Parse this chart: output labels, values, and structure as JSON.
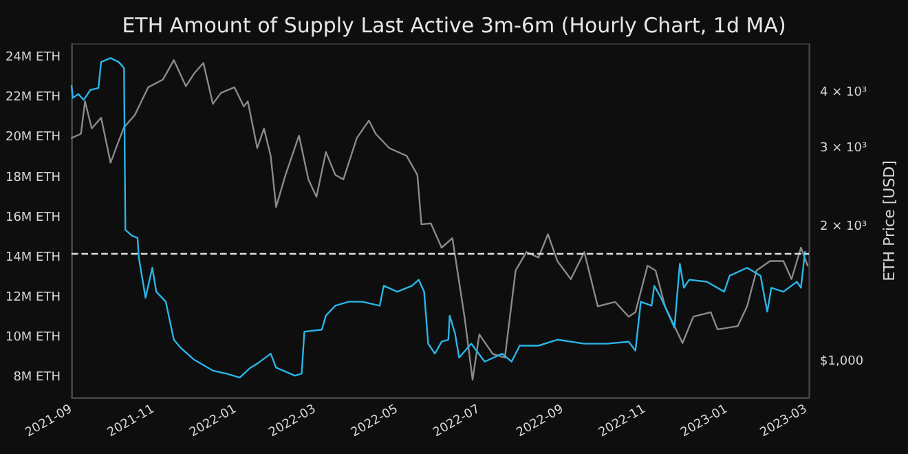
{
  "chart_data": {
    "type": "line",
    "title": "ETH Amount of Supply Last Active 3m-6m (Hourly Chart, 1d MA)",
    "y2label": "ETH Price [USD]",
    "log": "y2",
    "marker": "none",
    "line_style": "solid",
    "xlim": [
      "2021-09-01",
      "2023-03-03"
    ],
    "xticks": [
      "2021-09",
      "2021-11",
      "2022-01",
      "2022-03",
      "2022-05",
      "2022-07",
      "2022-09",
      "2022-11",
      "2023-01",
      "2023-03"
    ],
    "ylim": [
      7.0,
      24.7
    ],
    "yticks": [
      {
        "value": 8,
        "label": "8M ETH"
      },
      {
        "value": 10,
        "label": "10M ETH"
      },
      {
        "value": 12,
        "label": "12M ETH"
      },
      {
        "value": 14,
        "label": "14M ETH"
      },
      {
        "value": 16,
        "label": "16M ETH"
      },
      {
        "value": 18,
        "label": "18M ETH"
      },
      {
        "value": 20,
        "label": "20M ETH"
      },
      {
        "value": 22,
        "label": "22M ETH"
      },
      {
        "value": 24,
        "label": "24M ETH"
      }
    ],
    "y2lim": [
      830,
      5150
    ],
    "y2ticks": [
      {
        "value": 1000,
        "label": "$1,000"
      },
      {
        "value": 2000,
        "label": "2 × 10³"
      },
      {
        "value": 3000,
        "label": "3 × 10³"
      },
      {
        "value": 4000,
        "label": "4 × 10³"
      }
    ],
    "ref_lines": [
      {
        "axis": "y",
        "value": 14.2,
        "color": "#e0e0e0",
        "line_style": "dashed"
      }
    ],
    "series": [
      {
        "color": "#8a8a8a",
        "axis": "y2",
        "x": [
          "2021-09-01",
          "2021-09-08",
          "2021-09-11",
          "2021-09-16",
          "2021-09-23",
          "2021-09-30",
          "2021-10-06",
          "2021-10-10",
          "2021-10-18",
          "2021-10-28",
          "2021-11-08",
          "2021-11-16",
          "2021-11-25",
          "2021-12-01",
          "2021-12-08",
          "2021-12-15",
          "2021-12-21",
          "2021-12-31",
          "2022-01-07",
          "2022-01-10",
          "2022-01-17",
          "2022-01-22",
          "2022-01-27",
          "2022-01-31",
          "2022-02-07",
          "2022-02-17",
          "2022-02-24",
          "2022-03-02",
          "2022-03-09",
          "2022-03-16",
          "2022-03-22",
          "2022-04-01",
          "2022-04-10",
          "2022-04-15",
          "2022-04-25",
          "2022-05-08",
          "2022-05-16",
          "2022-05-19",
          "2022-05-26",
          "2022-06-03",
          "2022-06-11",
          "2022-06-20",
          "2022-06-26",
          "2022-07-01",
          "2022-07-11",
          "2022-07-20",
          "2022-07-28",
          "2022-08-05",
          "2022-08-14",
          "2022-08-21",
          "2022-08-28",
          "2022-09-07",
          "2022-09-17",
          "2022-09-27",
          "2022-10-10",
          "2022-10-20",
          "2022-10-25",
          "2022-11-03",
          "2022-11-09",
          "2022-11-16",
          "2022-11-29",
          "2022-12-07",
          "2022-12-20",
          "2022-12-25",
          "2023-01-09",
          "2023-01-16",
          "2023-01-23",
          "2023-02-02",
          "2023-02-12",
          "2023-02-18",
          "2023-02-25",
          "2023-03-02"
        ],
        "values": [
          3170,
          3240,
          3830,
          3330,
          3520,
          2790,
          3120,
          3350,
          3570,
          4120,
          4290,
          4740,
          4140,
          4420,
          4670,
          3780,
          4000,
          4120,
          3730,
          3830,
          3010,
          3330,
          2890,
          2220,
          2620,
          3210,
          2560,
          2340,
          2950,
          2620,
          2560,
          3170,
          3470,
          3240,
          3010,
          2890,
          2620,
          2030,
          2040,
          1800,
          1890,
          1260,
          910,
          1150,
          1040,
          1020,
          1600,
          1760,
          1710,
          1930,
          1680,
          1530,
          1760,
          1330,
          1360,
          1260,
          1290,
          1640,
          1600,
          1330,
          1100,
          1260,
          1290,
          1180,
          1200,
          1330,
          1600,
          1680,
          1680,
          1530,
          1800,
          1640
        ]
      },
      {
        "color": "#29b5e8",
        "x": [
          "2021-09-01",
          "2021-09-02",
          "2021-09-06",
          "2021-09-10",
          "2021-09-15",
          "2021-09-21",
          "2021-09-23",
          "2021-09-30",
          "2021-10-06",
          "2021-10-10",
          "2021-10-11",
          "2021-10-16",
          "2021-10-20",
          "2021-10-21",
          "2021-10-26",
          "2021-10-31",
          "2021-11-03",
          "2021-11-10",
          "2021-11-16",
          "2021-11-21",
          "2021-12-01",
          "2021-12-15",
          "2021-12-25",
          "2022-01-04",
          "2022-01-12",
          "2022-01-17",
          "2022-01-27",
          "2022-01-31",
          "2022-02-14",
          "2022-02-19",
          "2022-02-21",
          "2022-03-06",
          "2022-03-09",
          "2022-03-16",
          "2022-03-26",
          "2022-04-05",
          "2022-04-18",
          "2022-04-21",
          "2022-05-01",
          "2022-05-12",
          "2022-05-17",
          "2022-05-21",
          "2022-05-24",
          "2022-05-29",
          "2022-06-03",
          "2022-06-08",
          "2022-06-09",
          "2022-06-13",
          "2022-06-16",
          "2022-06-25",
          "2022-07-05",
          "2022-07-18",
          "2022-07-25",
          "2022-07-31",
          "2022-08-14",
          "2022-08-28",
          "2022-09-17",
          "2022-10-04",
          "2022-10-20",
          "2022-10-25",
          "2022-10-29",
          "2022-11-06",
          "2022-11-08",
          "2022-11-13",
          "2022-11-19",
          "2022-11-23",
          "2022-11-27",
          "2022-11-30",
          "2022-12-04",
          "2022-12-17",
          "2022-12-30",
          "2023-01-03",
          "2023-01-16",
          "2023-01-26",
          "2023-01-29",
          "2023-01-31",
          "2023-02-03",
          "2023-02-12",
          "2023-02-22",
          "2023-02-25",
          "2023-02-28"
        ],
        "values": [
          22.6,
          22.0,
          22.2,
          21.9,
          22.4,
          22.5,
          23.8,
          24.0,
          23.8,
          23.5,
          15.4,
          15.1,
          15.0,
          14.0,
          12.0,
          13.5,
          12.3,
          11.8,
          9.9,
          9.5,
          8.9,
          8.35,
          8.2,
          8.0,
          8.5,
          8.7,
          9.2,
          8.5,
          8.1,
          8.2,
          10.3,
          10.4,
          11.1,
          11.6,
          11.8,
          11.8,
          11.6,
          12.6,
          12.3,
          12.6,
          12.9,
          12.3,
          9.7,
          9.2,
          9.8,
          9.9,
          11.1,
          10.2,
          9.0,
          9.7,
          8.8,
          9.2,
          8.8,
          9.6,
          9.6,
          9.9,
          9.7,
          9.7,
          9.8,
          9.35,
          11.8,
          11.6,
          12.6,
          12.0,
          11.1,
          10.5,
          13.7,
          12.5,
          12.9,
          12.8,
          12.3,
          13.1,
          13.5,
          13.1,
          12.0,
          11.3,
          12.5,
          12.3,
          12.8,
          12.5,
          14.3
        ]
      }
    ]
  }
}
